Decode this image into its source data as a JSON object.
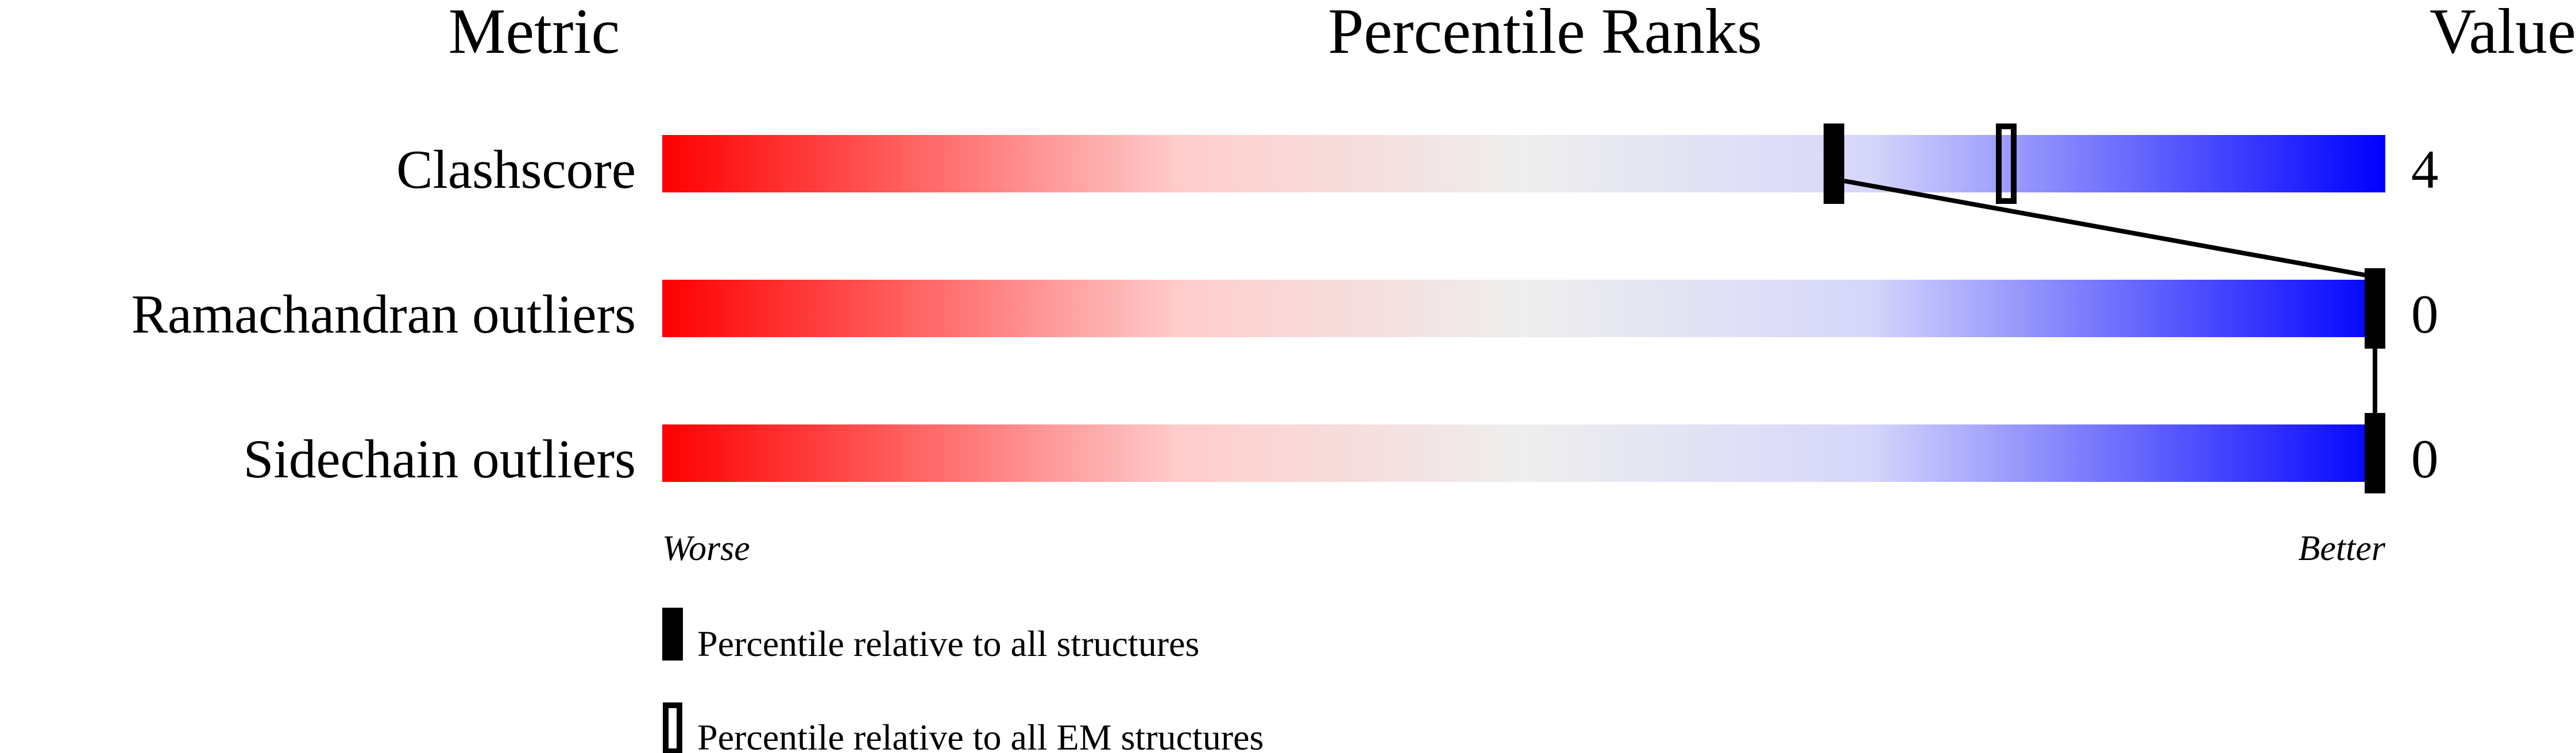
{
  "chart_data": {
    "type": "bar",
    "headers": {
      "metric": "Metric",
      "ranks": "Percentile Ranks",
      "value": "Value"
    },
    "xlim": [
      0,
      100
    ],
    "axis_labels": {
      "worse": "Worse",
      "better": "Better"
    },
    "gradient_colors": [
      "#ff0000",
      "#ffcccc",
      "#eeeeee",
      "#d6d6fb",
      "#0000ff"
    ],
    "rows": [
      {
        "metric": "Clashscore",
        "value": "4",
        "percentile_all": 68,
        "percentile_em": 78
      },
      {
        "metric": "Ramachandran outliers",
        "value": "0",
        "percentile_all": 100,
        "percentile_em": null
      },
      {
        "metric": "Sidechain outliers",
        "value": "0",
        "percentile_all": 100,
        "percentile_em": null
      }
    ],
    "legend": [
      {
        "marker": "filled",
        "label": "Percentile relative to all structures"
      },
      {
        "marker": "open",
        "label": "Percentile relative to all EM structures"
      }
    ]
  }
}
